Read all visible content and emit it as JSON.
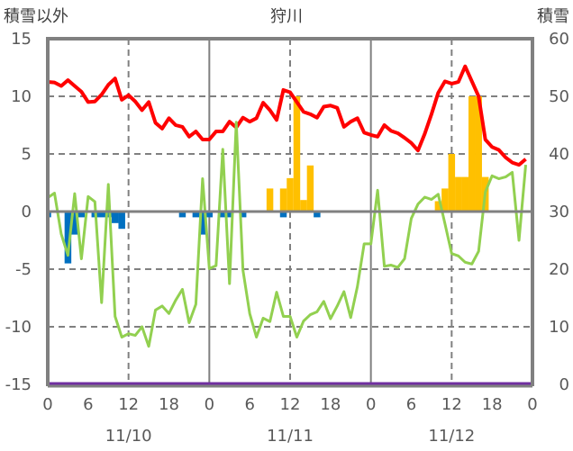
{
  "chart_data": {
    "type": "bar",
    "title": "狩川",
    "ylabel_left": "積雪以外",
    "ylabel_right": "積雪",
    "ylim_left": [
      -15,
      15
    ],
    "ylim_right": [
      0,
      60
    ],
    "yticks_left": [
      "15",
      "10",
      "5",
      "0",
      "-5",
      "-10",
      "-15"
    ],
    "yticks_right": [
      "60",
      "50",
      "40",
      "30",
      "20",
      "10",
      "0"
    ],
    "x_unit": "hour",
    "xlim": [
      0,
      72
    ],
    "xticks": [
      "0",
      "6",
      "12",
      "18",
      "0",
      "6",
      "12",
      "18",
      "0",
      "6",
      "12",
      "18",
      "0"
    ],
    "date_labels": [
      {
        "hour": 12,
        "label": "11/10"
      },
      {
        "hour": 36,
        "label": "11/11"
      },
      {
        "hour": 60,
        "label": "11/12"
      }
    ],
    "grid": "dashed horizontal at ±5, ±10; dashed vertical at 12h; solid vertical at day boundaries",
    "colors": {
      "red": "#ff0000",
      "green": "#92d050",
      "orange": "#ffc000",
      "blue": "#0070c0",
      "purple": "#7030a0",
      "grid": "#808080"
    },
    "series": [
      {
        "name": "red-line",
        "axis": "left",
        "kind": "line",
        "color": "#ff0000",
        "values": [
          11.25,
          11.2,
          10.9,
          11.4,
          10.9,
          10.4,
          9.5,
          9.55,
          10.15,
          11.0,
          11.55,
          9.7,
          10.1,
          9.55,
          8.8,
          9.5,
          7.7,
          7.2,
          8.1,
          7.5,
          7.35,
          6.5,
          6.95,
          6.25,
          6.25,
          6.95,
          6.95,
          7.8,
          7.3,
          8.15,
          7.8,
          8.1,
          9.45,
          8.8,
          7.95,
          10.55,
          10.35,
          9.5,
          8.65,
          8.45,
          8.15,
          9.1,
          9.2,
          9.0,
          7.35,
          7.8,
          8.1,
          6.85,
          6.65,
          6.5,
          7.5,
          7.0,
          6.8,
          6.4,
          5.95,
          5.3,
          6.75,
          8.45,
          10.3,
          11.3,
          11.1,
          11.25,
          12.6,
          11.3,
          10.0,
          6.25,
          5.6,
          5.35,
          4.7,
          4.25,
          4.05,
          4.55
        ]
      },
      {
        "name": "green-line",
        "axis": "left",
        "kind": "line",
        "color": "#92d050",
        "values": [
          1.2,
          1.6,
          -1.95,
          -3.8,
          1.55,
          -4.1,
          1.3,
          0.85,
          -7.9,
          2.35,
          -9.1,
          -10.9,
          -10.6,
          -10.75,
          -10.0,
          -11.7,
          -8.55,
          -8.2,
          -8.85,
          -7.7,
          -6.75,
          -9.65,
          -8.05,
          2.85,
          -4.95,
          -4.7,
          5.4,
          -6.25,
          7.75,
          -5.1,
          -8.85,
          -10.9,
          -9.25,
          -9.55,
          -7.0,
          -9.1,
          -9.1,
          -10.9,
          -9.5,
          -8.95,
          -8.7,
          -7.8,
          -9.3,
          -8.2,
          -6.95,
          -9.2,
          -6.5,
          -2.8,
          -2.8,
          1.85,
          -4.75,
          -4.65,
          -4.85,
          -4.1,
          -0.6,
          0.65,
          1.25,
          1.05,
          1.5,
          -1.05,
          -3.65,
          -3.85,
          -4.4,
          -4.55,
          -3.45,
          1.7,
          3.1,
          2.85,
          3.0,
          3.4,
          -2.5,
          4.05
        ]
      },
      {
        "name": "orange-bars",
        "axis": "left",
        "kind": "bar",
        "color": "#ffc000",
        "points": [
          [
            33,
            2.0
          ],
          [
            35,
            2.0
          ],
          [
            36,
            2.9
          ],
          [
            37,
            10.0
          ],
          [
            38,
            1.0
          ],
          [
            39,
            4.0
          ],
          [
            58,
            0.9
          ],
          [
            59,
            2.0
          ],
          [
            60,
            5.0
          ],
          [
            61,
            3.0
          ],
          [
            62,
            3.0
          ],
          [
            63,
            10.0
          ],
          [
            64,
            10.0
          ],
          [
            65,
            3.0
          ]
        ]
      },
      {
        "name": "blue-bars",
        "axis": "left",
        "kind": "bar",
        "color": "#0070c0",
        "points": [
          [
            0,
            -0.5
          ],
          [
            3,
            -4.5
          ],
          [
            4,
            -2.0
          ],
          [
            5,
            -0.5
          ],
          [
            7,
            -0.5
          ],
          [
            8,
            -0.5
          ],
          [
            9,
            -0.5
          ],
          [
            10,
            -1.0
          ],
          [
            11,
            -1.5
          ],
          [
            20,
            -0.5
          ],
          [
            22,
            -0.5
          ],
          [
            23,
            -2.0
          ],
          [
            24,
            -0.5
          ],
          [
            26,
            -0.5
          ],
          [
            27,
            -0.5
          ],
          [
            29,
            -0.5
          ],
          [
            35,
            -0.5
          ],
          [
            40,
            -0.5
          ]
        ]
      },
      {
        "name": "purple-line",
        "axis": "right",
        "kind": "line",
        "color": "#7030a0",
        "values": [
          0,
          0
        ]
      }
    ]
  }
}
